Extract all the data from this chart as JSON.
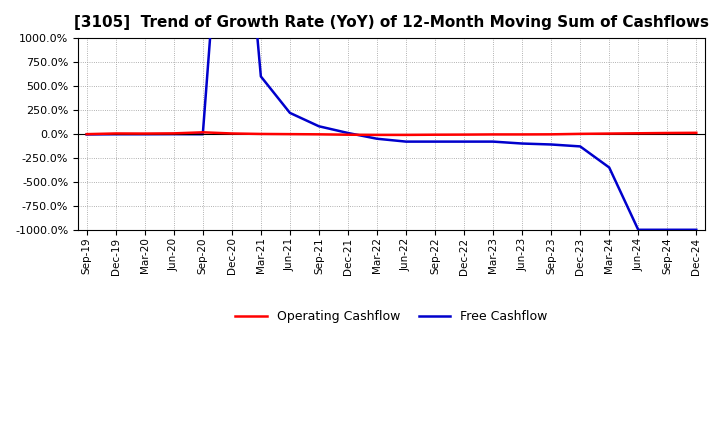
{
  "title": "[3105]  Trend of Growth Rate (YoY) of 12-Month Moving Sum of Cashflows",
  "title_fontsize": 11,
  "background_color": "#ffffff",
  "plot_background_color": "#ffffff",
  "ylim": [
    -1000,
    1000
  ],
  "yticks": [
    -1000,
    -750,
    -500,
    -250,
    0,
    250,
    500,
    750,
    1000
  ],
  "x_labels": [
    "Sep-19",
    "Dec-19",
    "Mar-20",
    "Jun-20",
    "Sep-20",
    "Dec-20",
    "Mar-21",
    "Jun-21",
    "Sep-21",
    "Dec-21",
    "Mar-22",
    "Jun-22",
    "Sep-22",
    "Dec-22",
    "Mar-23",
    "Jun-23",
    "Sep-23",
    "Dec-23",
    "Mar-24",
    "Jun-24",
    "Sep-24",
    "Dec-24"
  ],
  "operating_cashflow": [
    -2,
    5,
    4,
    6,
    17,
    5,
    0,
    -2,
    -4,
    -8,
    -10,
    -10,
    -8,
    -7,
    -5,
    -5,
    -4,
    1,
    4,
    7,
    10,
    12
  ],
  "free_cashflow": [
    -5,
    -3,
    -3,
    -2,
    -3,
    4000,
    600,
    220,
    80,
    10,
    -50,
    -80,
    -80,
    -80,
    -80,
    -100,
    -110,
    -130,
    -350,
    -1000,
    -1000,
    -1000
  ],
  "operating_color": "#ff0000",
  "free_color": "#0000cc",
  "line_width": 1.8,
  "legend_operating": "Operating Cashflow",
  "legend_free": "Free Cashflow",
  "grid_color": "#999999",
  "grid_style": ":"
}
